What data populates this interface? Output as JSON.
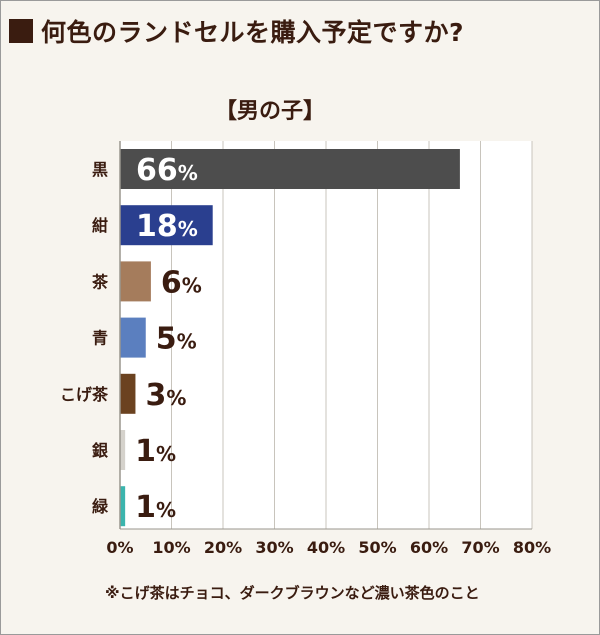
{
  "title": "何色のランドセルを購入予定ですか?",
  "subtitle": "【男の子】",
  "footnote": "※こげ茶はチョコ、ダークブラウンなど濃い茶色のこと",
  "chart_data": {
    "type": "bar",
    "orientation": "horizontal",
    "title": "何色のランドセルを購入予定ですか?",
    "subtitle": "【男の子】",
    "categories": [
      "黒",
      "紺",
      "茶",
      "青",
      "こげ茶",
      "銀",
      "緑"
    ],
    "values": [
      66,
      18,
      6,
      5,
      3,
      1,
      1
    ],
    "value_suffix": "%",
    "bar_colors": [
      "#4d4d4d",
      "#2a3f8f",
      "#a57c5c",
      "#5b7fbf",
      "#6b4220",
      "#d5d2cc",
      "#3bb4ad"
    ],
    "xlim": [
      0,
      80
    ],
    "xticks": [
      "0%",
      "10%",
      "20%",
      "30%",
      "40%",
      "50%",
      "60%",
      "70%",
      "80%"
    ],
    "grid": true,
    "label_color": "#3a1c10"
  }
}
